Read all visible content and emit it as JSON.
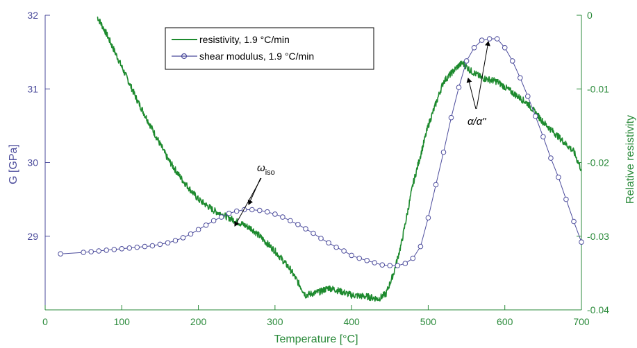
{
  "chart_data": {
    "type": "line",
    "xlabel": "Temperature [°C]",
    "ylabel_left": "G [GPa]",
    "ylabel_right": "Relative resistivity",
    "xlim": [
      0,
      700
    ],
    "ylim_left": [
      28,
      32
    ],
    "ylim_right": [
      -0.04,
      0
    ],
    "x_ticks": [
      "0",
      "100",
      "200",
      "300",
      "400",
      "500",
      "600",
      "700"
    ],
    "y_left_ticks": [
      "29",
      "30",
      "31",
      "32"
    ],
    "y_right_ticks": [
      "0",
      "-0.01",
      "-0.02",
      "-0.03",
      "-0.04"
    ],
    "grid": false,
    "legend_position": "top-center",
    "colors": {
      "resistivity": "#1d8a2e",
      "shear": "#4c4c9c",
      "left_axis": "#4b4b9b",
      "right_axis": "#2a8a3a"
    },
    "series": [
      {
        "name": "resistivity, 1.9 °C/min",
        "axis": "right",
        "x": [
          68,
          80,
          100,
          120,
          140,
          160,
          180,
          200,
          220,
          240,
          260,
          270,
          280,
          300,
          320,
          340,
          360,
          370,
          380,
          400,
          420,
          435,
          445,
          455,
          465,
          480,
          500,
          520,
          540,
          545,
          555,
          570,
          590,
          610,
          630,
          650,
          670,
          690,
          700
        ],
        "y": [
          -0.0002,
          -0.0025,
          -0.007,
          -0.0115,
          -0.0155,
          -0.0195,
          -0.0225,
          -0.025,
          -0.0265,
          -0.0275,
          -0.0285,
          -0.029,
          -0.03,
          -0.032,
          -0.0345,
          -0.038,
          -0.0375,
          -0.037,
          -0.0373,
          -0.038,
          -0.0382,
          -0.0385,
          -0.0378,
          -0.035,
          -0.031,
          -0.023,
          -0.015,
          -0.009,
          -0.0068,
          -0.0065,
          -0.0075,
          -0.0085,
          -0.009,
          -0.0105,
          -0.012,
          -0.0145,
          -0.0165,
          -0.0185,
          -0.021
        ]
      },
      {
        "name": "shear modulus, 1.9 °C/min",
        "axis": "left",
        "x": [
          20,
          50,
          60,
          70,
          80,
          90,
          100,
          110,
          120,
          130,
          140,
          150,
          160,
          170,
          180,
          190,
          200,
          210,
          220,
          230,
          240,
          250,
          260,
          270,
          280,
          290,
          300,
          310,
          320,
          330,
          340,
          350,
          360,
          370,
          380,
          390,
          400,
          410,
          420,
          430,
          440,
          450,
          460,
          470,
          480,
          490,
          500,
          510,
          520,
          530,
          540,
          550,
          560,
          570,
          580,
          590,
          600,
          610,
          620,
          630,
          640,
          650,
          660,
          670,
          680,
          690,
          700
        ],
        "y": [
          28.76,
          28.78,
          28.79,
          28.8,
          28.81,
          28.82,
          28.83,
          28.84,
          28.85,
          28.86,
          28.87,
          28.89,
          28.91,
          28.94,
          28.98,
          29.03,
          29.09,
          29.15,
          29.21,
          29.26,
          29.31,
          29.34,
          29.36,
          29.36,
          29.35,
          29.33,
          29.3,
          29.26,
          29.21,
          29.16,
          29.1,
          29.04,
          28.97,
          28.91,
          28.85,
          28.8,
          28.74,
          28.7,
          28.67,
          28.64,
          28.61,
          28.6,
          28.6,
          28.63,
          28.7,
          28.86,
          29.25,
          29.7,
          30.14,
          30.61,
          31.02,
          31.38,
          31.56,
          31.66,
          31.68,
          31.68,
          31.56,
          31.38,
          31.15,
          30.9,
          30.63,
          30.35,
          30.06,
          29.8,
          29.5,
          29.2,
          28.92
        ]
      }
    ],
    "annotations": [
      {
        "label": "ω",
        "subscript": "iso"
      },
      {
        "label": "α/α\""
      }
    ]
  }
}
